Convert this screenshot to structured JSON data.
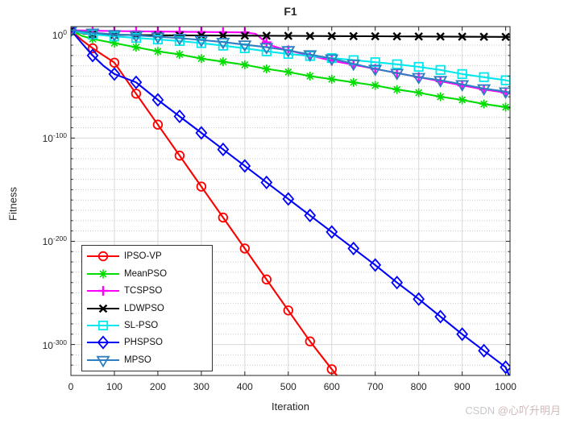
{
  "chart": {
    "title": "F1",
    "xlabel": "Iteration",
    "ylabel": "Fitness"
  },
  "watermark": {
    "prefix": "CSDN ",
    "user": "@心吖升明月"
  },
  "chart_data": {
    "type": "line",
    "title": "F1",
    "xlabel": "Iteration",
    "ylabel": "Fitness",
    "grid": true,
    "legend_position": "lower-left",
    "x_axis": {
      "min": 0,
      "max": 1010,
      "ticks": [
        0,
        100,
        200,
        300,
        400,
        500,
        600,
        700,
        800,
        900,
        1000
      ]
    },
    "y_axis": {
      "scale": "log10",
      "tick_exponents": [
        0,
        -100,
        -200,
        -300
      ],
      "minor_grid_step_exponent": 10,
      "top_exponent": 8,
      "bottom_exponent": -330
    },
    "series": [
      {
        "name": "IPSO-VP",
        "color": "#ff0000",
        "marker": "circle",
        "marker_every": 50,
        "points_log10": [
          [
            0,
            4.5
          ],
          [
            25,
            -5
          ],
          [
            50,
            -13
          ],
          [
            75,
            -20
          ],
          [
            100,
            -27
          ],
          [
            150,
            -57
          ],
          [
            200,
            -87
          ],
          [
            250,
            -117
          ],
          [
            300,
            -147
          ],
          [
            350,
            -177
          ],
          [
            400,
            -207
          ],
          [
            450,
            -237
          ],
          [
            500,
            -267
          ],
          [
            550,
            -297
          ],
          [
            600,
            -324
          ],
          [
            612,
            -330
          ]
        ]
      },
      {
        "name": "MeanPSO",
        "color": "#00dc00",
        "marker": "asterisk",
        "marker_every": 50,
        "points_log10": [
          [
            0,
            4.5
          ],
          [
            25,
            -1
          ],
          [
            50,
            -4
          ],
          [
            100,
            -8
          ],
          [
            150,
            -12
          ],
          [
            200,
            -16
          ],
          [
            250,
            -19
          ],
          [
            300,
            -23
          ],
          [
            350,
            -26
          ],
          [
            400,
            -29
          ],
          [
            450,
            -33
          ],
          [
            500,
            -36
          ],
          [
            550,
            -40
          ],
          [
            600,
            -43
          ],
          [
            650,
            -46
          ],
          [
            700,
            -49
          ],
          [
            750,
            -53
          ],
          [
            800,
            -56
          ],
          [
            850,
            -60
          ],
          [
            900,
            -63
          ],
          [
            950,
            -67
          ],
          [
            1000,
            -70
          ],
          [
            1010,
            -71
          ]
        ]
      },
      {
        "name": "TCSPSO",
        "color": "#ff00ff",
        "marker": "plus",
        "marker_every": 50,
        "points_log10": [
          [
            0,
            4.5
          ],
          [
            50,
            4.0
          ],
          [
            100,
            3.7
          ],
          [
            150,
            3.4
          ],
          [
            200,
            3.2
          ],
          [
            250,
            3.0
          ],
          [
            300,
            2.8
          ],
          [
            350,
            2.6
          ],
          [
            400,
            2.4
          ],
          [
            425,
            1.0
          ],
          [
            445,
            -6
          ],
          [
            465,
            -11
          ],
          [
            490,
            -14
          ],
          [
            550,
            -20
          ],
          [
            600,
            -25
          ],
          [
            650,
            -29
          ],
          [
            700,
            -33
          ],
          [
            750,
            -37
          ],
          [
            800,
            -41
          ],
          [
            850,
            -45
          ],
          [
            900,
            -49
          ],
          [
            950,
            -53
          ],
          [
            1000,
            -56
          ],
          [
            1010,
            -57
          ]
        ]
      },
      {
        "name": "LDWPSO",
        "color": "#000000",
        "marker": "x",
        "marker_every": 50,
        "points_log10": [
          [
            0,
            4.5
          ],
          [
            30,
            1.2
          ],
          [
            60,
            0.4
          ],
          [
            100,
            0
          ],
          [
            200,
            -0.4
          ],
          [
            300,
            -0.6
          ],
          [
            400,
            -0.8
          ],
          [
            500,
            -1.0
          ],
          [
            600,
            -1.2
          ],
          [
            700,
            -1.4
          ],
          [
            800,
            -1.6
          ],
          [
            900,
            -1.8
          ],
          [
            1000,
            -2.0
          ],
          [
            1010,
            -2.0
          ]
        ]
      },
      {
        "name": "SL-PSO",
        "color": "#00e8ee",
        "marker": "square",
        "marker_every": 50,
        "points_log10": [
          [
            0,
            4.5
          ],
          [
            25,
            2
          ],
          [
            50,
            0.5
          ],
          [
            100,
            -1.5
          ],
          [
            150,
            -3
          ],
          [
            200,
            -4.5
          ],
          [
            250,
            -6
          ],
          [
            300,
            -8
          ],
          [
            350,
            -10.5
          ],
          [
            400,
            -13
          ],
          [
            450,
            -16
          ],
          [
            500,
            -18.5
          ],
          [
            550,
            -20.5
          ],
          [
            600,
            -22.5
          ],
          [
            650,
            -24.5
          ],
          [
            700,
            -26.5
          ],
          [
            750,
            -28.5
          ],
          [
            800,
            -31
          ],
          [
            850,
            -34
          ],
          [
            900,
            -38
          ],
          [
            950,
            -41
          ],
          [
            1000,
            -44
          ],
          [
            1010,
            -45
          ]
        ]
      },
      {
        "name": "PHSPSO",
        "color": "#0000ff",
        "marker": "diamond",
        "marker_every": 50,
        "points_log10": [
          [
            0,
            4.5
          ],
          [
            25,
            -8
          ],
          [
            50,
            -20
          ],
          [
            75,
            -30
          ],
          [
            100,
            -38
          ],
          [
            150,
            -46
          ],
          [
            200,
            -63
          ],
          [
            250,
            -79
          ],
          [
            300,
            -95
          ],
          [
            350,
            -111
          ],
          [
            400,
            -127
          ],
          [
            450,
            -143
          ],
          [
            500,
            -159
          ],
          [
            550,
            -175
          ],
          [
            600,
            -191
          ],
          [
            650,
            -207
          ],
          [
            700,
            -223
          ],
          [
            750,
            -240
          ],
          [
            800,
            -256
          ],
          [
            850,
            -273
          ],
          [
            900,
            -290
          ],
          [
            950,
            -306
          ],
          [
            1000,
            -322
          ],
          [
            1008,
            -330
          ]
        ]
      },
      {
        "name": "MPSO",
        "color": "#2e7fc1",
        "marker": "triangle-down",
        "marker_every": 50,
        "points_log10": [
          [
            0,
            4.5
          ],
          [
            50,
            2
          ],
          [
            100,
            0.5
          ],
          [
            150,
            -0.5
          ],
          [
            200,
            -1.8
          ],
          [
            250,
            -3.2
          ],
          [
            300,
            -5
          ],
          [
            350,
            -7
          ],
          [
            400,
            -9.5
          ],
          [
            450,
            -12
          ],
          [
            500,
            -15
          ],
          [
            550,
            -19
          ],
          [
            600,
            -23
          ],
          [
            650,
            -28
          ],
          [
            700,
            -33
          ],
          [
            750,
            -37
          ],
          [
            800,
            -41
          ],
          [
            850,
            -44
          ],
          [
            900,
            -48
          ],
          [
            950,
            -52
          ],
          [
            1000,
            -55
          ],
          [
            1010,
            -56
          ]
        ]
      }
    ]
  }
}
